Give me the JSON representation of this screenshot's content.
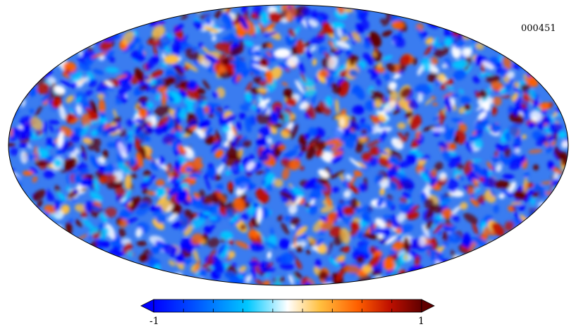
{
  "map": {
    "id_label": "000451",
    "projection": "mollweide",
    "colormap": [
      "#0000ff",
      "#0050ff",
      "#00c8ff",
      "#ffffff",
      "#ffc040",
      "#ff6000",
      "#c01000",
      "#600000"
    ]
  },
  "colorbar": {
    "min_label": "-1",
    "max_label": "1",
    "range": [
      -1,
      1
    ]
  }
}
